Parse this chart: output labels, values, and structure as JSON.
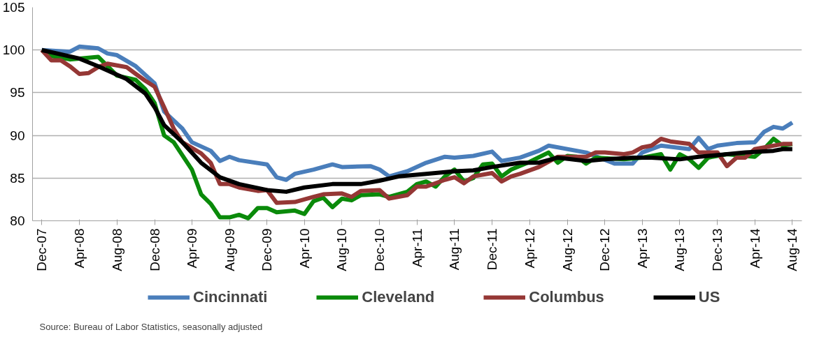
{
  "chart_data": {
    "type": "line",
    "xlim": [
      "2007-11",
      "2014-09"
    ],
    "ylim": [
      80,
      105
    ],
    "yticks": [
      80,
      85,
      90,
      95,
      100,
      105
    ],
    "xticks": [
      {
        "value": "2007-12",
        "label": "Dec-07"
      },
      {
        "value": "2008-04",
        "label": "Apr-08"
      },
      {
        "value": "2008-08",
        "label": "Aug-08"
      },
      {
        "value": "2008-12",
        "label": "Dec-08"
      },
      {
        "value": "2009-04",
        "label": "Apr-09"
      },
      {
        "value": "2009-08",
        "label": "Aug-09"
      },
      {
        "value": "2009-12",
        "label": "Dec-09"
      },
      {
        "value": "2010-04",
        "label": "Apr-10"
      },
      {
        "value": "2010-08",
        "label": "Aug-10"
      },
      {
        "value": "2010-12",
        "label": "Dec-10"
      },
      {
        "value": "2011-04",
        "label": "Apr-11"
      },
      {
        "value": "2011-08",
        "label": "Aug-11"
      },
      {
        "value": "2011-12",
        "label": "Dec-11"
      },
      {
        "value": "2012-04",
        "label": "Apr-12"
      },
      {
        "value": "2012-08",
        "label": "Aug-12"
      },
      {
        "value": "2012-12",
        "label": "Dec-12"
      },
      {
        "value": "2013-04",
        "label": "Apr-13"
      },
      {
        "value": "2013-08",
        "label": "Aug-13"
      },
      {
        "value": "2013-12",
        "label": "Dec-13"
      },
      {
        "value": "2014-04",
        "label": "Apr-14"
      },
      {
        "value": "2014-08",
        "label": "Aug-14"
      }
    ],
    "grid": "y",
    "legend": "bottom",
    "line_style": "solid",
    "annotations": [
      "Source: Bureau of Labor Statistics, seasonally adjusted"
    ],
    "series": [
      {
        "name": "Cincinnati",
        "color": "#4a7ebb",
        "x": [
          "2007-12",
          "2008-03",
          "2008-04",
          "2008-06",
          "2008-07",
          "2008-08",
          "2008-10",
          "2008-12",
          "2009-01",
          "2009-03",
          "2009-04",
          "2009-06",
          "2009-07",
          "2009-08",
          "2009-09",
          "2009-12",
          "2010-01",
          "2010-02",
          "2010-03",
          "2010-05",
          "2010-07",
          "2010-08",
          "2010-11",
          "2010-12",
          "2011-01",
          "2011-03",
          "2011-05",
          "2011-07",
          "2011-08",
          "2011-10",
          "2011-12",
          "2012-01",
          "2012-03",
          "2012-05",
          "2012-06",
          "2012-10",
          "2013-01",
          "2013-03",
          "2013-04",
          "2013-06",
          "2013-09",
          "2013-10",
          "2013-11",
          "2013-12",
          "2014-02",
          "2014-04",
          "2014-05",
          "2014-06",
          "2014-07",
          "2014-08"
        ],
        "values": [
          100,
          99.8,
          100.4,
          100.2,
          99.6,
          99.4,
          98.1,
          96.1,
          92.8,
          90.8,
          89.2,
          88.2,
          87,
          87.5,
          87.1,
          86.6,
          85.1,
          84.8,
          85.5,
          86,
          86.6,
          86.3,
          86.4,
          86,
          85.2,
          85.8,
          86.8,
          87.5,
          87.4,
          87.6,
          88.1,
          87,
          87.4,
          88.2,
          88.8,
          88,
          86.7,
          86.7,
          88,
          88.8,
          88.4,
          89.7,
          88.4,
          88.8,
          89.1,
          89.2,
          90.4,
          91,
          90.8,
          91.5
        ]
      },
      {
        "name": "Cleveland",
        "color": "#0a8a0a",
        "x": [
          "2007-12",
          "2008-01",
          "2008-03",
          "2008-06",
          "2008-08",
          "2008-10",
          "2008-11",
          "2008-12",
          "2009-01",
          "2009-02",
          "2009-04",
          "2009-05",
          "2009-06",
          "2009-07",
          "2009-08",
          "2009-09",
          "2009-10",
          "2009-11",
          "2009-12",
          "2010-01",
          "2010-03",
          "2010-04",
          "2010-05",
          "2010-06",
          "2010-07",
          "2010-08",
          "2010-09",
          "2010-10",
          "2010-12",
          "2011-01",
          "2011-03",
          "2011-04",
          "2011-05",
          "2011-06",
          "2011-07",
          "2011-08",
          "2011-09",
          "2011-10",
          "2011-11",
          "2011-12",
          "2012-01",
          "2012-02",
          "2012-04",
          "2012-06",
          "2012-07",
          "2012-08",
          "2012-09",
          "2012-10",
          "2012-11",
          "2013-02",
          "2013-04",
          "2013-06",
          "2013-07",
          "2013-08",
          "2013-09",
          "2013-10",
          "2013-11",
          "2014-01",
          "2014-04",
          "2014-05",
          "2014-06",
          "2014-07",
          "2014-08"
        ],
        "values": [
          100,
          99.3,
          98.9,
          99.2,
          97,
          96.5,
          95.4,
          93.8,
          90,
          89.2,
          86,
          83.1,
          82,
          80.4,
          80.4,
          80.7,
          80.3,
          81.5,
          81.5,
          81,
          81.2,
          80.8,
          82.3,
          82.7,
          81.6,
          82.6,
          82.4,
          83,
          83.1,
          82.8,
          83.4,
          84.3,
          84.6,
          84,
          85.2,
          86,
          84.6,
          85,
          86.6,
          86.7,
          85.2,
          86,
          86.9,
          88,
          86.8,
          87.6,
          87.5,
          86.7,
          87.4,
          87.2,
          87.4,
          87.8,
          86,
          87.8,
          87.2,
          86.2,
          87.4,
          87.8,
          87.5,
          88.4,
          89.6,
          88.8,
          89
        ]
      },
      {
        "name": "Columbus",
        "color": "#953735",
        "x": [
          "2007-12",
          "2008-01",
          "2008-02",
          "2008-03",
          "2008-04",
          "2008-05",
          "2008-06",
          "2008-07",
          "2008-09",
          "2008-10",
          "2008-11",
          "2008-12",
          "2009-01",
          "2009-02",
          "2009-03",
          "2009-05",
          "2009-06",
          "2009-07",
          "2009-08",
          "2009-09",
          "2009-11",
          "2009-12",
          "2010-01",
          "2010-03",
          "2010-05",
          "2010-06",
          "2010-08",
          "2010-09",
          "2010-10",
          "2010-12",
          "2011-01",
          "2011-03",
          "2011-04",
          "2011-05",
          "2011-07",
          "2011-08",
          "2011-09",
          "2011-10",
          "2011-12",
          "2012-01",
          "2012-02",
          "2012-03",
          "2012-05",
          "2012-07",
          "2012-10",
          "2012-11",
          "2012-12",
          "2013-02",
          "2013-03",
          "2013-04",
          "2013-05",
          "2013-06",
          "2013-07",
          "2013-09",
          "2013-10",
          "2013-12",
          "2014-01",
          "2014-02",
          "2014-03",
          "2014-04",
          "2014-07",
          "2014-08"
        ],
        "values": [
          100,
          98.8,
          98.8,
          98.1,
          97.2,
          97.3,
          98,
          98.4,
          98,
          97.2,
          96.4,
          95.7,
          93.3,
          90.8,
          89.2,
          87.9,
          86.8,
          84.3,
          84.3,
          83.9,
          83.5,
          83.6,
          82.1,
          82.2,
          82.8,
          83.1,
          83.2,
          82.8,
          83.5,
          83.6,
          82.6,
          83,
          84,
          84,
          84.8,
          85.1,
          84.4,
          85.2,
          85.6,
          84.6,
          85.2,
          85.5,
          86.3,
          87.5,
          87.5,
          88,
          88,
          87.8,
          88,
          88.6,
          88.8,
          89.6,
          89.3,
          89,
          88,
          88,
          86.4,
          87.4,
          87.4,
          88.4,
          89,
          89
        ]
      },
      {
        "name": "US",
        "color": "#000000",
        "x": [
          "2007-12",
          "2008-04",
          "2008-06",
          "2008-09",
          "2008-11",
          "2008-12",
          "2009-01",
          "2009-03",
          "2009-05",
          "2009-07",
          "2009-09",
          "2009-12",
          "2010-02",
          "2010-04",
          "2010-07",
          "2010-10",
          "2010-12",
          "2011-02",
          "2011-05",
          "2011-08",
          "2011-10",
          "2011-12",
          "2012-03",
          "2012-05",
          "2012-07",
          "2012-10",
          "2012-12",
          "2013-03",
          "2013-05",
          "2013-08",
          "2013-10",
          "2014-01",
          "2014-03",
          "2014-06",
          "2014-07",
          "2014-08"
        ],
        "values": [
          100,
          99,
          98.1,
          96.6,
          94.9,
          93.3,
          91.2,
          89.2,
          86.8,
          85.1,
          84.3,
          83.6,
          83.4,
          83.9,
          84.3,
          84.3,
          84.7,
          85.2,
          85.5,
          85.8,
          85.9,
          86.3,
          86.8,
          86.8,
          87.4,
          87,
          87.2,
          87.4,
          87.4,
          87.2,
          87.5,
          87.8,
          88,
          88.2,
          88.4,
          88.4
        ]
      }
    ]
  }
}
